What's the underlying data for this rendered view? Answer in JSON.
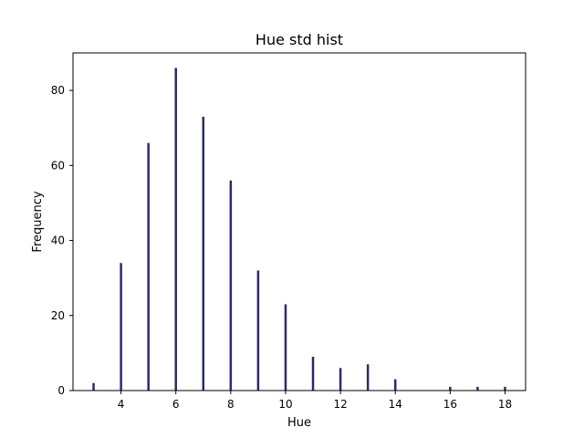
{
  "chart_data": {
    "type": "bar",
    "title": "Hue std hist",
    "xlabel": "Hue",
    "ylabel": "Frequency",
    "xlim": [
      2.25,
      18.75
    ],
    "ylim": [
      0,
      90
    ],
    "x_ticks": [
      4,
      6,
      8,
      10,
      12,
      14,
      16,
      18
    ],
    "y_ticks": [
      0,
      20,
      40,
      60,
      80
    ],
    "grid": false,
    "bar_color": "#2b2b6a",
    "bars": [
      {
        "x": 3,
        "value": 2
      },
      {
        "x": 4,
        "value": 34
      },
      {
        "x": 5,
        "value": 66
      },
      {
        "x": 6,
        "value": 86
      },
      {
        "x": 7,
        "value": 73
      },
      {
        "x": 8,
        "value": 56
      },
      {
        "x": 9,
        "value": 32
      },
      {
        "x": 10,
        "value": 23
      },
      {
        "x": 11,
        "value": 9
      },
      {
        "x": 12,
        "value": 6
      },
      {
        "x": 13,
        "value": 7
      },
      {
        "x": 14,
        "value": 3
      },
      {
        "x": 16,
        "value": 1
      },
      {
        "x": 17,
        "value": 1
      },
      {
        "x": 18,
        "value": 1
      }
    ]
  }
}
